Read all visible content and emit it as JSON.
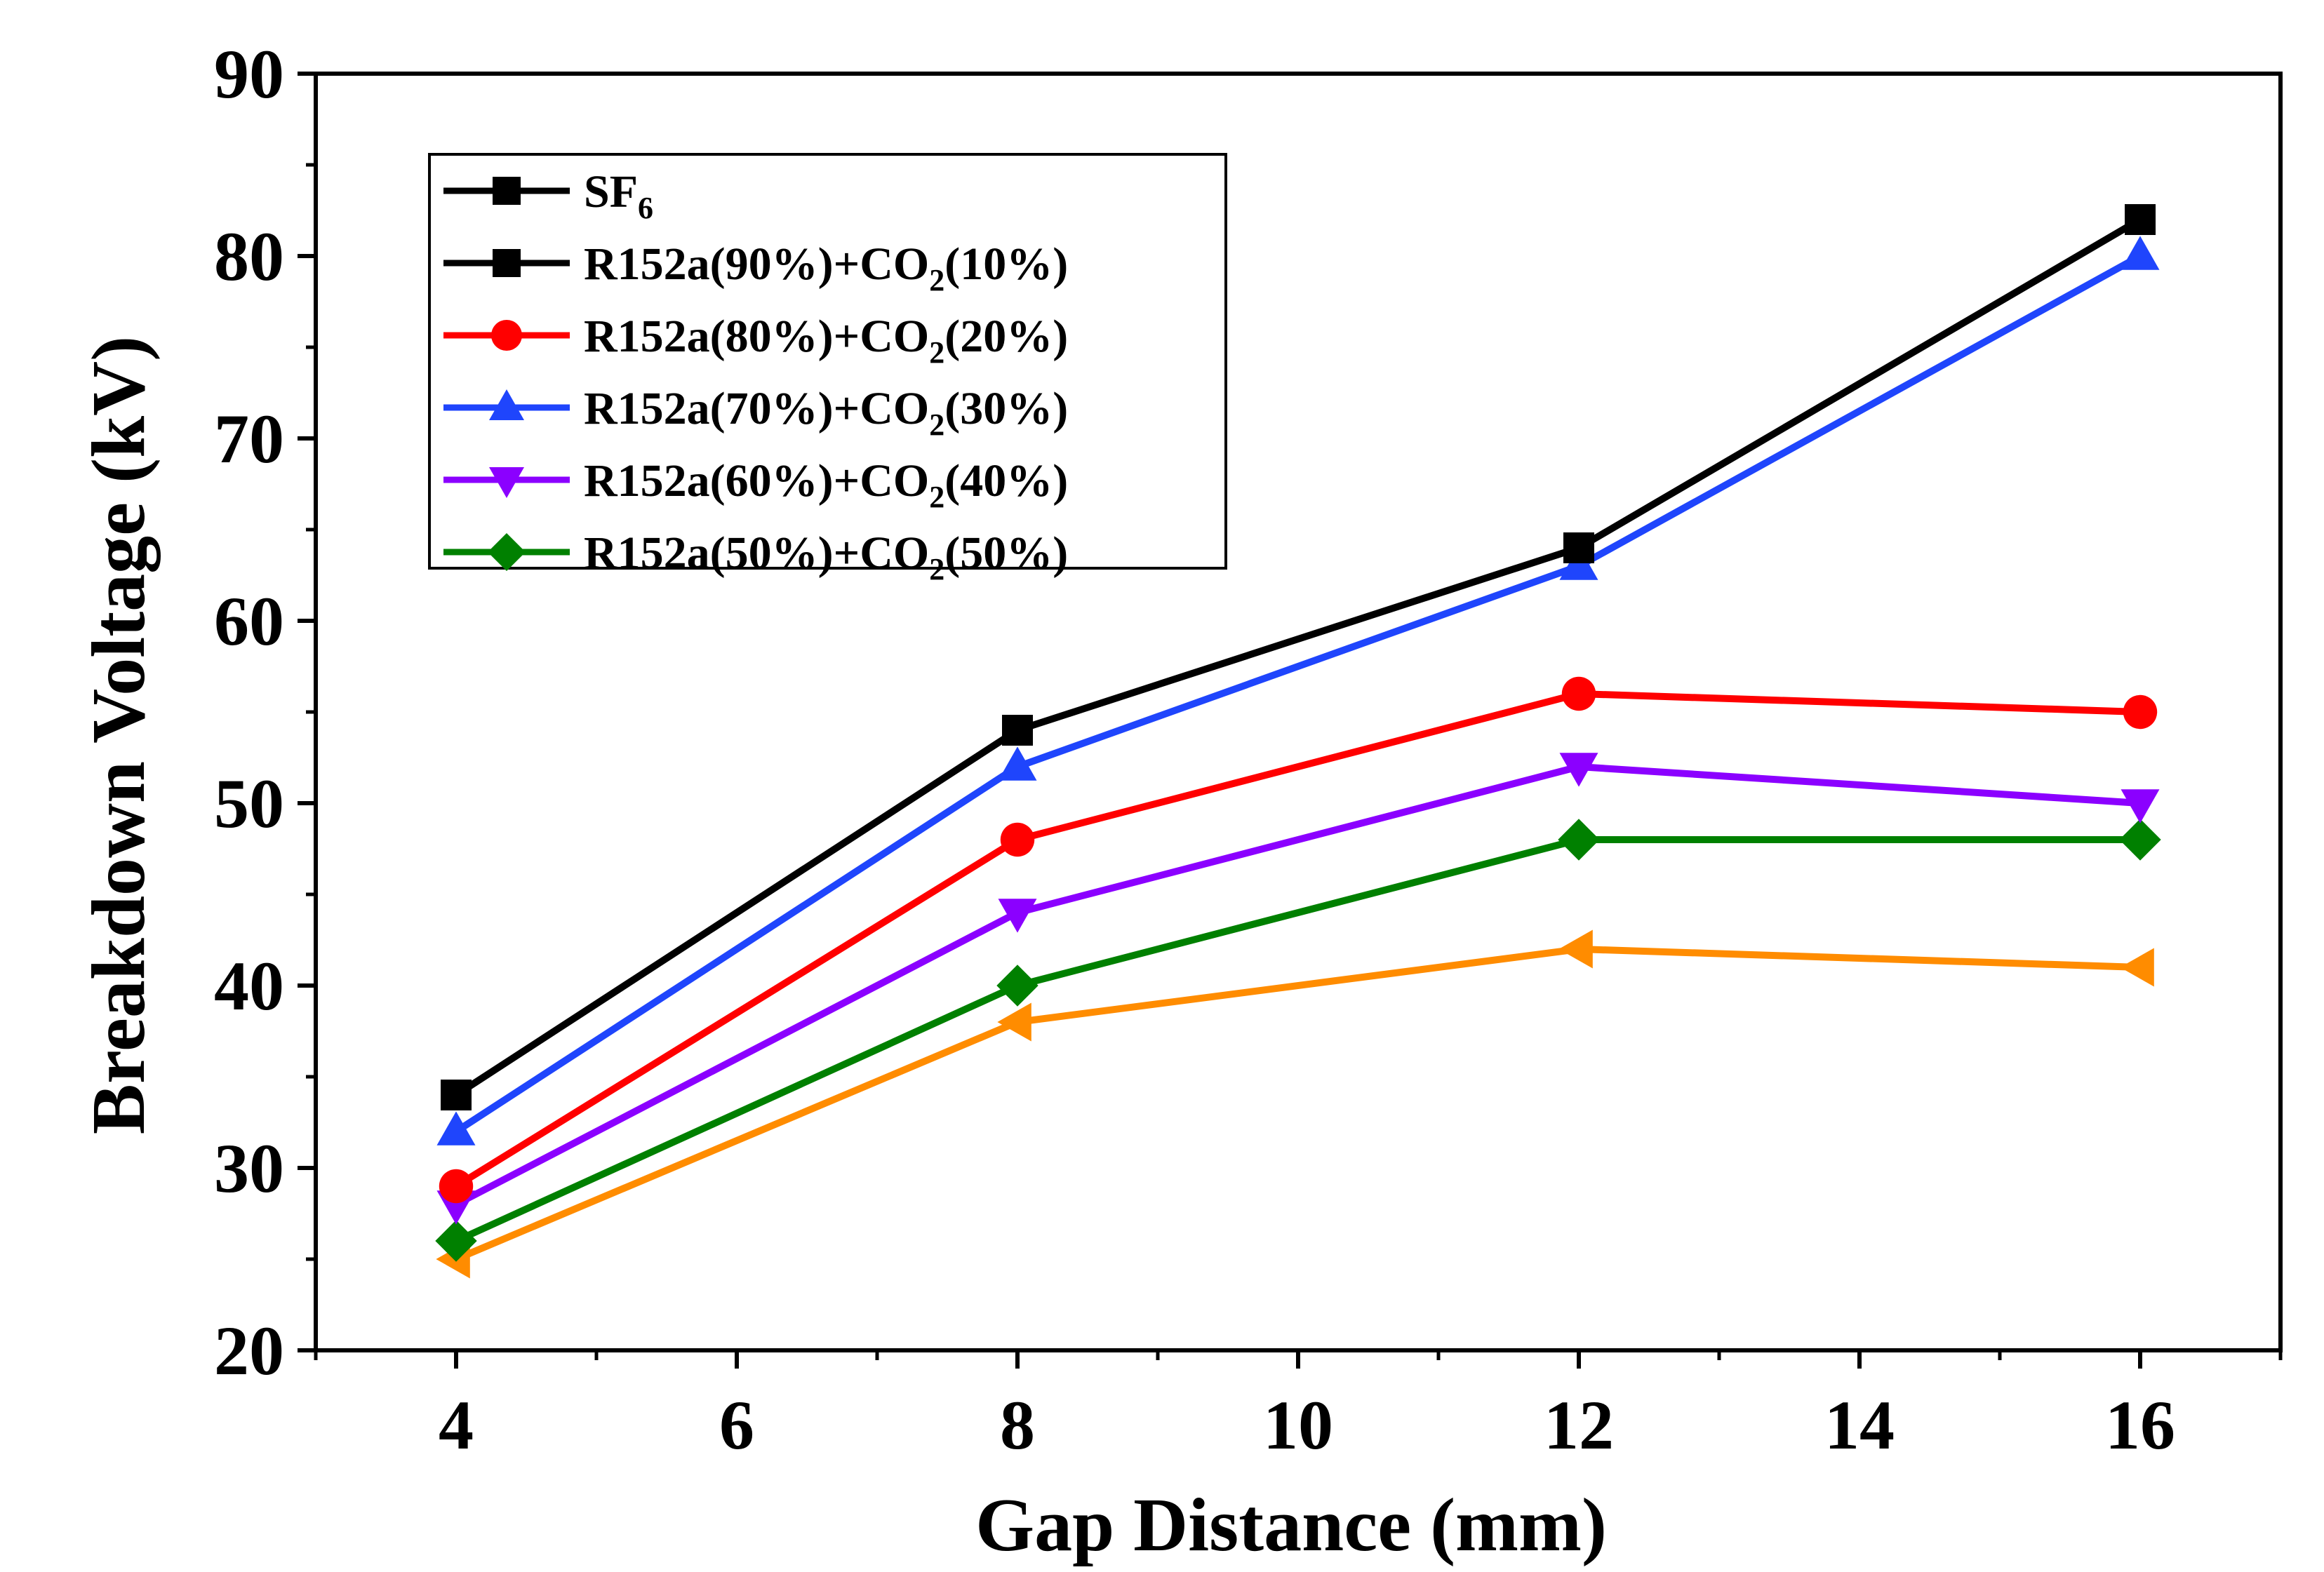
{
  "chart_data": {
    "type": "line",
    "title": "",
    "xlabel": "Gap Distance (mm)",
    "ylabel": "Breakdown Voltage (kV)",
    "xlim": [
      3,
      17
    ],
    "ylim": [
      20,
      90
    ],
    "xticks": [
      4,
      6,
      8,
      10,
      12,
      14,
      16
    ],
    "yticks": [
      20,
      30,
      40,
      50,
      60,
      70,
      80,
      90
    ],
    "legend_position": "top-left",
    "x": [
      4,
      8,
      12,
      16
    ],
    "series": [
      {
        "name": "SF6",
        "base": "SF",
        "sub": "6",
        "tail": "",
        "sub2": "",
        "tail2": "",
        "color": "#000000",
        "marker": "square",
        "values": null
      },
      {
        "name": "R152a(90%)+CO2(10%)",
        "base": "R152a(90%)+CO",
        "sub": "2",
        "tail": "(10%)",
        "color": "#000000",
        "marker": "square",
        "values": [
          34,
          54,
          64,
          82
        ]
      },
      {
        "name": "R152a(80%)+CO2(20%)",
        "base": "R152a(80%)+CO",
        "sub": "2",
        "tail": "(20%)",
        "color": "#ff0000",
        "marker": "circle",
        "values": [
          29,
          48,
          56,
          55
        ]
      },
      {
        "name": "R152a(70%)+CO2(30%)",
        "base": "R152a(70%)+CO",
        "sub": "2",
        "tail": "(30%)",
        "color": "#1f45fc",
        "marker": "triangle-up",
        "values": [
          32,
          52,
          63,
          80
        ]
      },
      {
        "name": "R152a(60%)+CO2(40%)",
        "base": "R152a(60%)+CO",
        "sub": "2",
        "tail": "(40%)",
        "color": "#8b00ff",
        "marker": "triangle-down",
        "values": [
          28,
          44,
          52,
          50
        ]
      },
      {
        "name": "R152a(50%)+CO2(50%)",
        "base": "R152a(50%)+CO",
        "sub": "2",
        "tail": "(50%)",
        "color": "#008000",
        "marker": "diamond",
        "values": [
          26,
          40,
          48,
          48
        ]
      },
      {
        "name": "",
        "color": "#ff8c00",
        "marker": "triangle-left",
        "values": [
          25,
          38,
          42,
          41
        ],
        "legend": false
      }
    ]
  }
}
